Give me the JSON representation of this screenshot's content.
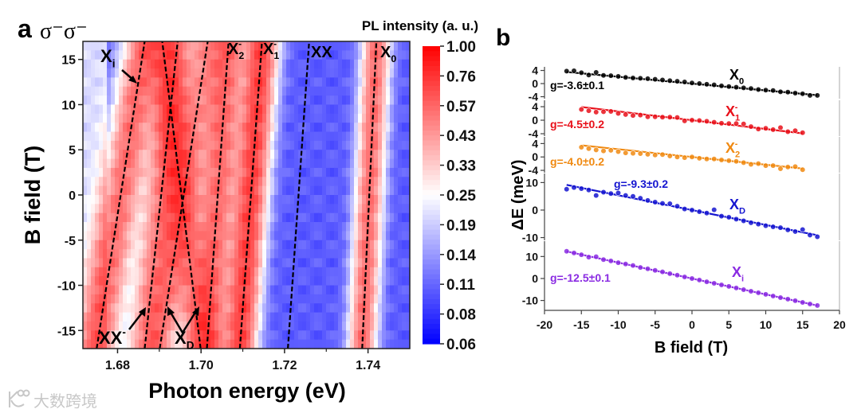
{
  "watermark": {
    "text": "大数跨境"
  },
  "chart_data": [
    {
      "type": "heatmap",
      "panel_label": "a",
      "polarization": "σ⁻σ⁻",
      "xlabel": "Photon energy (eV)",
      "ylabel": "B field (T)",
      "xlim": [
        1.6717,
        1.75
      ],
      "ylim": [
        -17,
        17
      ],
      "xticks": [
        "1.68",
        "1.70",
        "1.72",
        "1.74"
      ],
      "yticks": [
        "15",
        "10",
        "5",
        "0",
        "-5",
        "-10",
        "-15"
      ],
      "colorbar": {
        "title": "PL intensity (a. u.)",
        "scale": "log",
        "range": [
          0.06,
          1.0
        ],
        "ticks": [
          "1.00",
          "0.76",
          "0.57",
          "0.43",
          "0.33",
          "0.25",
          "0.19",
          "0.14",
          "0.11",
          "0.08",
          "0.06"
        ],
        "low_color": "#0000ff",
        "mid_color": "#ffffff",
        "high_color": "#ff0000"
      },
      "baseline_intensity": 0.1,
      "dashed_lines": [
        {
          "name": "Xi",
          "E_at_minus17T": 1.675,
          "E_at_plus17T": 1.6865,
          "amplitude": 0.45,
          "width": 0.0045
        },
        {
          "name": "XX-",
          "E_at_minus17T": 1.6865,
          "E_at_plus17T": 1.6944,
          "amplitude": 0.35,
          "width": 0.004
        },
        {
          "name": "XD-a",
          "E_at_minus17T": 1.6901,
          "E_at_plus17T": 1.7016,
          "amplitude": 0.3,
          "width": 0.004
        },
        {
          "name": "XD-b",
          "E_at_minus17T": 1.6999,
          "E_at_plus17T": 1.6907,
          "amplitude": 0.3,
          "width": 0.004
        },
        {
          "name": "X2-",
          "E_at_minus17T": 1.7014,
          "E_at_plus17T": 1.7066,
          "amplitude": 0.45,
          "width": 0.004
        },
        {
          "name": "X1-",
          "E_at_minus17T": 1.7093,
          "E_at_plus17T": 1.7146,
          "amplitude": 0.6,
          "width": 0.0035
        },
        {
          "name": "XX",
          "E_at_minus17T": 1.7208,
          "E_at_plus17T": 1.7259,
          "amplitude": 0.0,
          "width": 0.003
        },
        {
          "name": "X0",
          "E_at_minus17T": 1.7386,
          "E_at_plus17T": 1.742,
          "amplitude": 0.45,
          "width": 0.003
        }
      ],
      "annotations": [
        {
          "base": "X",
          "sub": "i",
          "sup": ""
        },
        {
          "base": "XX",
          "sub": "",
          "sup": "-"
        },
        {
          "base": "X",
          "sub": "D",
          "sup": ""
        },
        {
          "base": "X",
          "sub": "2",
          "sup": "-"
        },
        {
          "base": "X",
          "sub": "1",
          "sup": "-"
        },
        {
          "base": "XX",
          "sub": "",
          "sup": ""
        },
        {
          "base": "X",
          "sub": "0",
          "sup": ""
        }
      ]
    },
    {
      "type": "scatter",
      "panel_label": "b",
      "xlabel": "B field (T)",
      "ylabel": "ΔE (meV)",
      "xlim": [
        -20,
        20
      ],
      "xticks": [
        -20,
        -15,
        -10,
        -5,
        0,
        5,
        10,
        15,
        20
      ],
      "series": [
        {
          "name": "X0",
          "base": "X",
          "sub": "0",
          "sup": "",
          "color": "#000000",
          "g_label": "g=-3.6±0.1",
          "g": -3.6,
          "ylim": [
            -4.6,
            5.1
          ],
          "yticks": [
            4,
            0,
            -4
          ],
          "B_start": -17,
          "values": [
            3.8,
            3.9,
            3.3,
            2.6,
            3.4,
            2.5,
            2.4,
            2.2,
            1.9,
            1.7,
            1.6,
            1.5,
            1.3,
            1.1,
            0.9,
            0.7,
            0.5,
            0.2,
            0.0,
            -0.2,
            -0.4,
            -0.7,
            -0.9,
            -1.1,
            -1.3,
            -1.5,
            -1.8,
            -2.0,
            -2.1,
            -2.5,
            -2.6,
            -2.9,
            -3.1,
            -3.6,
            -3.6
          ]
        },
        {
          "name": "X1-",
          "base": "X",
          "sub": "1",
          "sup": "-",
          "color": "#e8101a",
          "g_label": "g=-4.5±0.2",
          "g": -4.5,
          "ylim": [
            -4.7,
            5.9
          ],
          "yticks": [
            4,
            0,
            -4
          ],
          "B_start": -15,
          "values": [
            3.2,
            2.8,
            2.4,
            2.5,
            2.6,
            2.0,
            1.7,
            1.4,
            1.5,
            1.0,
            1.0,
            0.9,
            0.9,
            0.8,
            -0.2,
            0.0,
            -0.1,
            -0.3,
            -0.6,
            -0.9,
            -1.0,
            -1.0,
            -1.1,
            -1.9,
            -2.6,
            -2.4,
            -2.8,
            -2.2,
            -3.4,
            -3.1,
            -3.7
          ]
        },
        {
          "name": "X2-",
          "base": "X",
          "sub": "2",
          "sup": "-",
          "color": "#f08a12",
          "g_label": "g=-4.0±0.2",
          "g": -4.0,
          "ylim": [
            -4.7,
            6.0
          ],
          "yticks": [
            4,
            0,
            -4
          ],
          "B_start": -15,
          "values": [
            2.9,
            2.5,
            2.1,
            1.8,
            2.0,
            1.6,
            1.2,
            1.1,
            1.0,
            0.8,
            0.6,
            0.7,
            0.3,
            0.0,
            -0.2,
            0.0,
            -0.4,
            -0.6,
            -0.6,
            -0.9,
            -1.1,
            -1.3,
            -1.7,
            -2.2,
            -2.0,
            -2.6,
            -2.6,
            -3.5,
            -3.0,
            -2.9,
            -3.8
          ]
        },
        {
          "name": "XD",
          "base": "X",
          "sub": "D",
          "sup": "",
          "color": "#1515d0",
          "g_label": "g=-9.3±0.2",
          "g": -9.3,
          "ylim": [
            -11.0,
            13.3
          ],
          "yticks": [
            10,
            0,
            -10
          ],
          "B_start": -17,
          "values": [
            7.6,
            8.2,
            7.8,
            7.3,
            5.3,
            6.5,
            6.0,
            6.2,
            5.3,
            5.0,
            4.3,
            3.5,
            2.9,
            2.4,
            2.3,
            1.4,
            0.4,
            0.0,
            -0.6,
            -1.1,
            0.1,
            -2.2,
            -2.6,
            -3.3,
            -3.9,
            -4.6,
            -5.1,
            -5.7,
            -6.1,
            -6.4,
            -7.2,
            -7.8,
            -7.1,
            -9.1,
            -9.7
          ]
        },
        {
          "name": "Xi",
          "base": "X",
          "sub": "i",
          "sup": "",
          "color": "#8a2be2",
          "g_label": "g=-12.5±0.1",
          "g": -12.5,
          "ylim": [
            -14.5,
            17.0
          ],
          "yticks": [
            10,
            0,
            -10
          ],
          "B_start": -17,
          "values": [
            12.4,
            11.6,
            10.8,
            9.7,
            9.9,
            8.6,
            8.0,
            7.2,
            6.6,
            5.9,
            5.0,
            4.4,
            3.7,
            3.0,
            2.2,
            1.5,
            0.7,
            0.0,
            -0.7,
            -1.5,
            -2.2,
            -2.9,
            -3.6,
            -4.3,
            -5.1,
            -5.8,
            -6.5,
            -7.2,
            -8.0,
            -8.7,
            -9.4,
            -10.1,
            -10.9,
            -11.6,
            -12.3
          ]
        }
      ]
    }
  ]
}
